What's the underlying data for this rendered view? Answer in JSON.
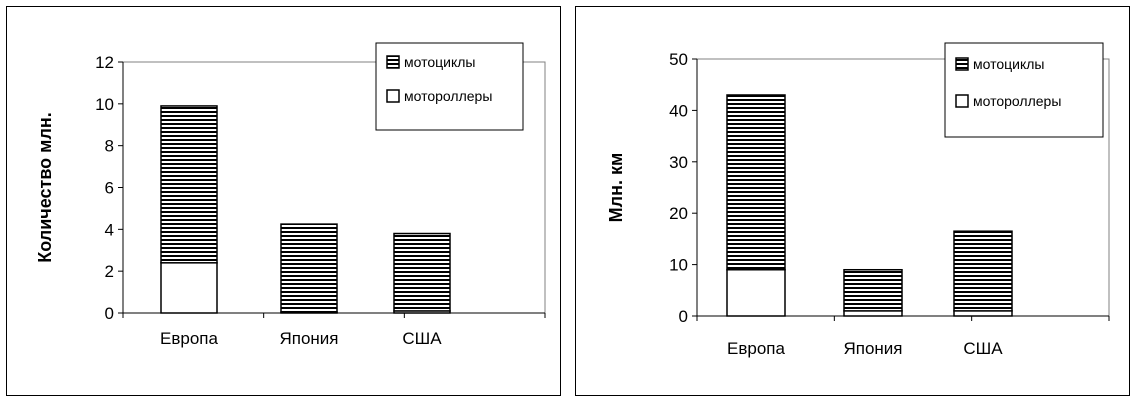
{
  "chart_data": [
    {
      "type": "bar",
      "stacked": true,
      "categories": [
        "Европа",
        "Япония",
        "США"
      ],
      "series": [
        {
          "name": "мотороллеры",
          "values": [
            2.4,
            0.05,
            0.1
          ],
          "pattern": "solid-white"
        },
        {
          "name": "мотоциклы",
          "values": [
            7.5,
            4.2,
            3.7
          ],
          "pattern": "horizontal-stripes"
        }
      ],
      "ylabel": "Количество млн.",
      "ylim": [
        0,
        12
      ],
      "yticks": [
        "0",
        "2",
        "4",
        "6",
        "8",
        "10",
        "12"
      ],
      "legend": {
        "placement": "top-right",
        "items": [
          "мотоциклы",
          "мотороллеры"
        ]
      },
      "grid": false,
      "colors": {
        "stripe": "#000000",
        "fill": "#ffffff",
        "plot_border": "#808080"
      }
    },
    {
      "type": "bar",
      "stacked": true,
      "categories": [
        "Европа",
        "Япония",
        "США"
      ],
      "series": [
        {
          "name": "мотороллеры",
          "values": [
            9,
            1,
            1
          ],
          "pattern": "solid-white"
        },
        {
          "name": "мотоциклы",
          "values": [
            34,
            8,
            15.5
          ],
          "pattern": "horizontal-stripes"
        }
      ],
      "ylabel": "Млн. км",
      "ylim": [
        0,
        50
      ],
      "yticks": [
        "0",
        "10",
        "20",
        "30",
        "40",
        "50"
      ],
      "legend": {
        "placement": "top-right",
        "items": [
          "мотоциклы",
          "мотороллеры"
        ]
      },
      "grid": false,
      "colors": {
        "stripe": "#000000",
        "fill": "#ffffff",
        "plot_border": "#808080"
      }
    }
  ]
}
